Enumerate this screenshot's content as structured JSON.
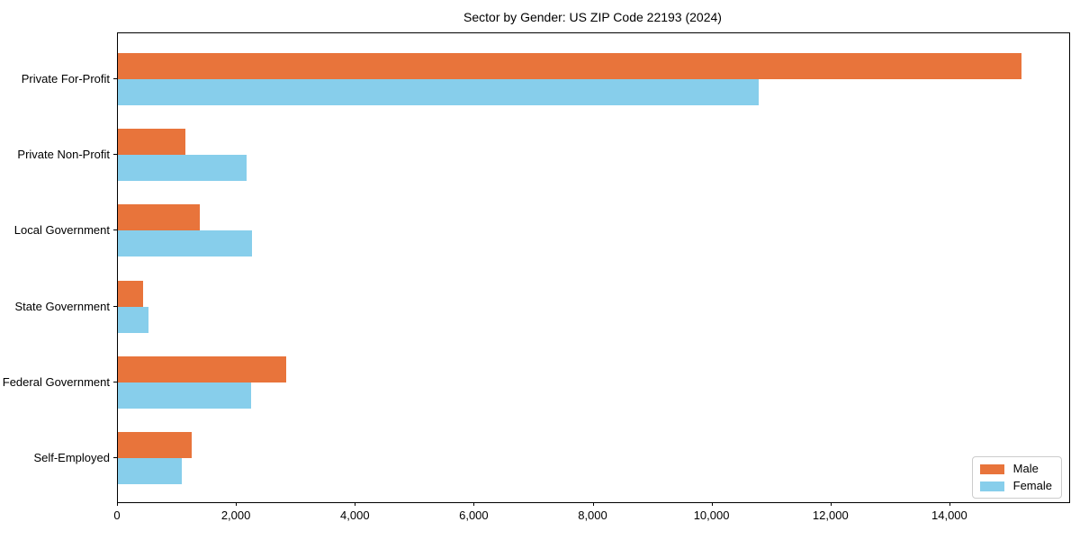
{
  "title": "Sector by Gender: US ZIP Code 22193 (2024)",
  "colors": {
    "male": "#E8743B",
    "female": "#87CEEB",
    "axis": "#000000",
    "legend_border": "#cccccc",
    "background": "#ffffff"
  },
  "legend": {
    "position": "lower right",
    "items": [
      {
        "label": "Male",
        "color": "#E8743B"
      },
      {
        "label": "Female",
        "color": "#87CEEB"
      }
    ]
  },
  "chart_data": {
    "type": "bar",
    "orientation": "horizontal",
    "title": "Sector by Gender: US ZIP Code 22193 (2024)",
    "categories": [
      "Private For-Profit",
      "Private Non-Profit",
      "Local Government",
      "State Government",
      "Federal Government",
      "Self-Employed"
    ],
    "series": [
      {
        "name": "Male",
        "color": "#E8743B",
        "values": [
          15200,
          1140,
          1370,
          420,
          2830,
          1240
        ]
      },
      {
        "name": "Female",
        "color": "#87CEEB",
        "values": [
          10770,
          2160,
          2260,
          520,
          2240,
          1070
        ]
      }
    ],
    "xlabel": "",
    "ylabel": "",
    "xlim": [
      0,
      16000
    ],
    "xticks": [
      0,
      2000,
      4000,
      6000,
      8000,
      10000,
      12000,
      14000
    ],
    "xtick_labels": [
      "0",
      "2,000",
      "4,000",
      "6,000",
      "8,000",
      "10,000",
      "12,000",
      "14,000"
    ],
    "grid": false,
    "legend_position": "lower right"
  }
}
